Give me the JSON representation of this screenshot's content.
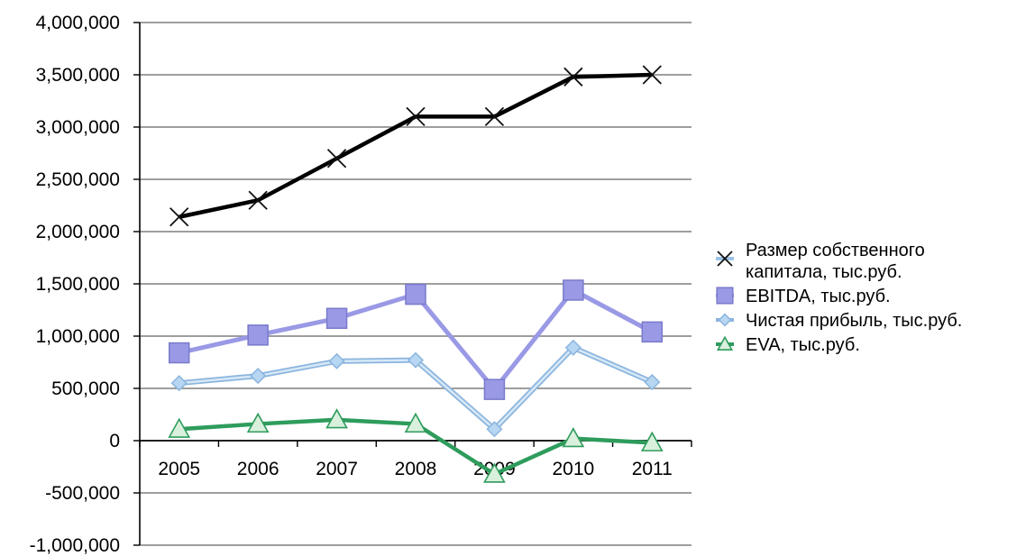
{
  "chart_data": {
    "type": "line",
    "x": [
      "2005",
      "2006",
      "2007",
      "2008",
      "2009",
      "2010",
      "2011"
    ],
    "ylim": [
      -1000000,
      4000000
    ],
    "yticks": [
      -1000000,
      -500000,
      0,
      500000,
      1000000,
      1500000,
      2000000,
      2500000,
      3000000,
      3500000,
      4000000
    ],
    "ytick_labels": [
      "-1,000,000",
      "-500,000",
      "0",
      "500,000",
      "1,000,000",
      "1,500,000",
      "2,000,000",
      "2,500,000",
      "3,000,000",
      "3,500,000",
      "4,000,000"
    ],
    "grid": true,
    "legend_position": "right",
    "series": [
      {
        "name_lines": [
          "Размер собственного",
          "капитала, тыс.руб."
        ],
        "values": [
          2140000,
          2300000,
          2700000,
          3100000,
          3100000,
          3480000,
          3500000
        ],
        "color": "#000000",
        "marker": "x"
      },
      {
        "name_lines": [
          "EBITDA, тыс.руб."
        ],
        "values": [
          840000,
          1010000,
          1170000,
          1400000,
          490000,
          1440000,
          1040000
        ],
        "color": "#9999e6",
        "marker": "square"
      },
      {
        "name_lines": [
          "Чистая прибыль, тыс.руб."
        ],
        "values": [
          550000,
          620000,
          760000,
          770000,
          110000,
          890000,
          560000
        ],
        "color": "#9cc4e8",
        "marker": "diamond"
      },
      {
        "name_lines": [
          "EVA, тыс.руб."
        ],
        "values": [
          110000,
          160000,
          200000,
          160000,
          -320000,
          20000,
          -20000
        ],
        "color": "#2e9c5c",
        "marker": "triangle"
      }
    ]
  }
}
